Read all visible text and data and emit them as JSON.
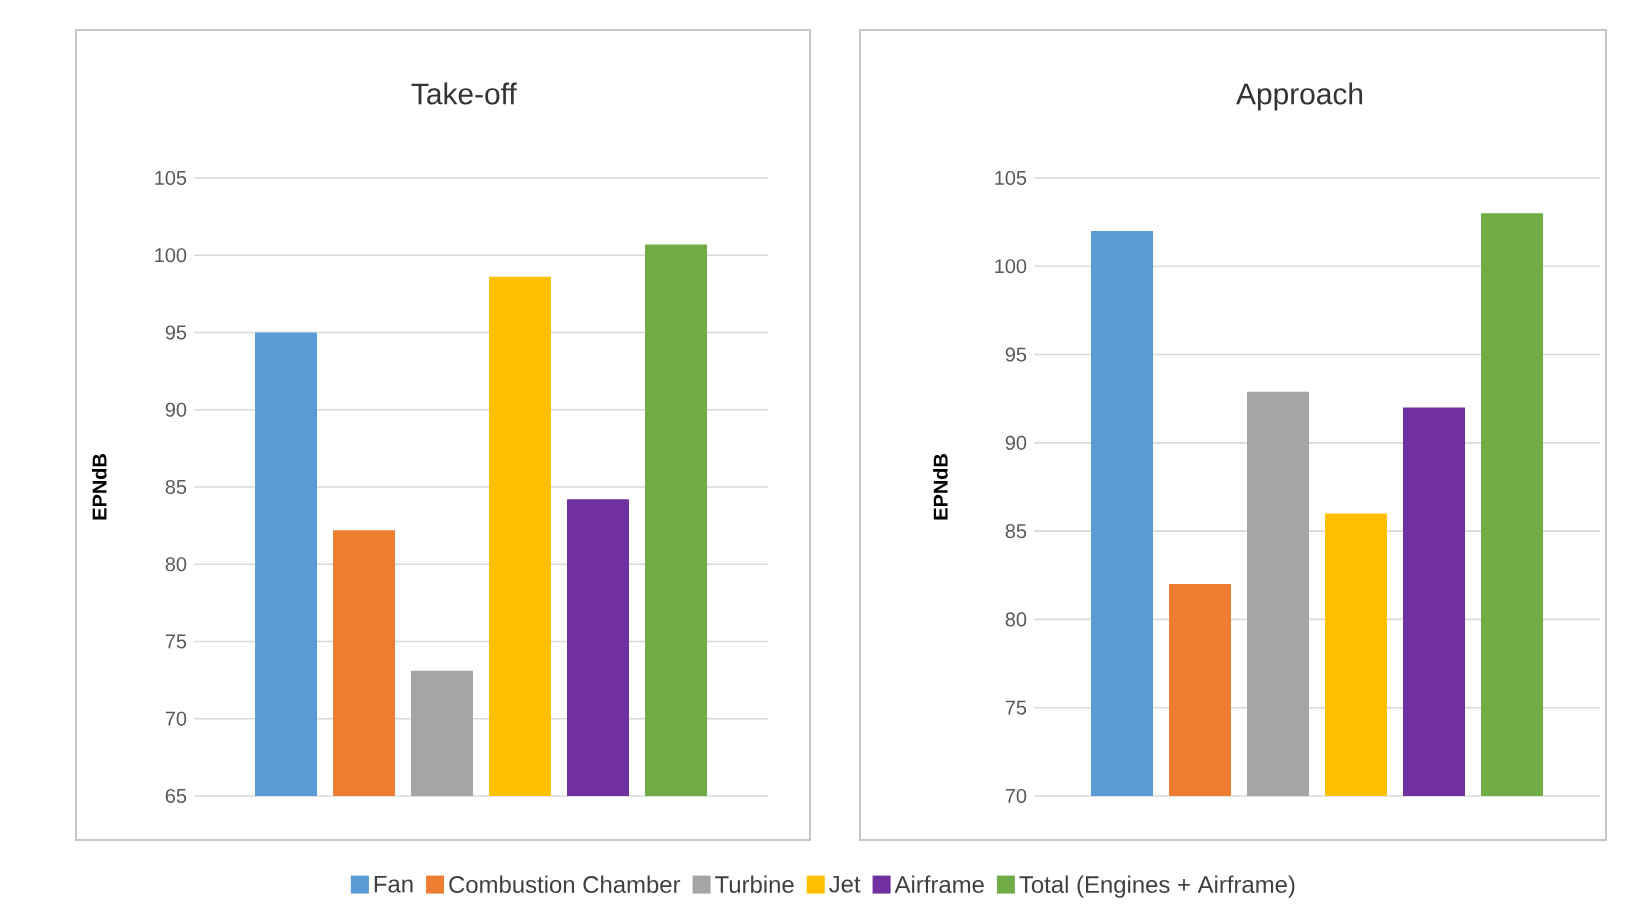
{
  "chart_data": [
    {
      "type": "bar",
      "title": "Take-off",
      "ylabel": "EPNdB",
      "categories": [
        null
      ],
      "ylim": [
        65,
        105
      ],
      "yticks": [
        65,
        70,
        75,
        80,
        85,
        90,
        95,
        100,
        105
      ],
      "grid": "y",
      "legend": "bottom",
      "series": [
        {
          "name": "Fan",
          "color": "#5b9bd5",
          "values": [
            95
          ]
        },
        {
          "name": "Combustion Chamber",
          "color": "#ed7d31",
          "values": [
            82.2
          ]
        },
        {
          "name": "Turbine",
          "color": "#a5a5a5",
          "values": [
            73.1
          ]
        },
        {
          "name": "Jet",
          "color": "#ffc000",
          "values": [
            98.6
          ]
        },
        {
          "name": "Airframe",
          "color": "#7030a0",
          "values": [
            84.2
          ]
        },
        {
          "name": "Total (Engines + Airframe)",
          "color": "#70ad47",
          "values": [
            100.7
          ]
        }
      ]
    },
    {
      "type": "bar",
      "title": "Approach",
      "ylabel": "EPNdB",
      "categories": [
        null
      ],
      "ylim": [
        70,
        105
      ],
      "yticks": [
        70,
        75,
        80,
        85,
        90,
        95,
        100,
        105
      ],
      "grid": "y",
      "series": [
        {
          "color": "#5b9bd5",
          "values": [
            102
          ]
        },
        {
          "color": "#ed7d31",
          "values": [
            82
          ]
        },
        {
          "color": "#a5a5a5",
          "values": [
            92.9
          ]
        },
        {
          "color": "#ffc000",
          "values": [
            86
          ]
        },
        {
          "color": "#7030a0",
          "values": [
            92
          ]
        },
        {
          "color": "#70ad47",
          "values": [
            103
          ]
        }
      ]
    }
  ]
}
